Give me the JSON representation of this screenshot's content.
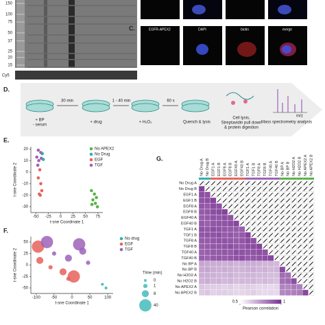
{
  "blot": {
    "markers": [
      150,
      100,
      75,
      50,
      37,
      25,
      20,
      15
    ],
    "loading_label": "Cy5"
  },
  "microscopy": {
    "panel_label": "C.",
    "channels": [
      "EGFR-APEX2",
      "DAPI",
      "biotin",
      "merge"
    ]
  },
  "workflow": {
    "panel_label": "D.",
    "step1": [
      "+ BP",
      "- serum"
    ],
    "time1": "30 min",
    "step2": "+ drug",
    "time2": "1 - 40 min",
    "step3": "+ H₂O₂",
    "time3": "60 s",
    "step4": "Quench & lysis",
    "step5": [
      "Cell lysis,",
      "Streptavidin pull down",
      "& protein digestion"
    ],
    "step6": "Mass spectrometry analysis",
    "spectrum_axis": "m/z"
  },
  "chart_data": [
    {
      "type": "scatter",
      "panel_label": "E.",
      "x_label": "t-sne Coordinate 1",
      "y_label": "t-sne Coordinate 2",
      "xlim": [
        -60,
        85
      ],
      "xticks": [
        -50,
        -25,
        0,
        25,
        50,
        75
      ],
      "ylim": [
        -35,
        22
      ],
      "yticks": [
        -30,
        -20,
        -10,
        0,
        10,
        20
      ],
      "legend": "upper right",
      "series": [
        {
          "name": "No APEX2",
          "color": "#5bb34a",
          "x": [
            62,
            68,
            72,
            65,
            70,
            74,
            63
          ],
          "values": [
            -16,
            -19,
            -22,
            -24,
            -27,
            -30,
            -28
          ]
        },
        {
          "name": "No Drug",
          "color": "#2ab1b5",
          "x": [
            -37,
            -35
          ],
          "values": [
            16,
            11
          ]
        },
        {
          "name": "EGF",
          "color": "#e8625a",
          "x": [
            -42,
            -45,
            -40,
            -38,
            -43,
            -41
          ],
          "values": [
            2,
            -5,
            -10,
            -16,
            -19,
            -20
          ]
        },
        {
          "name": "TGF",
          "color": "#9d62b8",
          "x": [
            -45,
            -40,
            -48,
            -44,
            -39,
            -46
          ],
          "values": [
            19,
            17,
            13,
            10,
            12,
            6
          ]
        }
      ]
    },
    {
      "type": "scatter",
      "panel_label": "F.",
      "x_label": "t-sne Coordinate 1",
      "y_label": "t-sne Coordinate 2",
      "xlim": [
        -115,
        115
      ],
      "xticks": [
        -100,
        -50,
        0,
        50,
        100
      ],
      "ylim": [
        -62,
        62
      ],
      "yticks": [
        -50,
        -25,
        0,
        25,
        50
      ],
      "legend": "upper right",
      "size_legend": {
        "title": "Time (min)",
        "values": [
          0,
          1,
          8,
          40
        ]
      },
      "series": [
        {
          "name": "No drug",
          "color": "#2ab1b5",
          "x": [
            95,
            85
          ],
          "values": [
            -50,
            -42
          ],
          "sizes": [
            0,
            0
          ]
        },
        {
          "name": "EGF",
          "color": "#e8625a",
          "x": [
            -95,
            -90,
            -60,
            -25,
            -10,
            5
          ],
          "values": [
            40,
            10,
            -5,
            -15,
            -30,
            -25
          ],
          "sizes": [
            40,
            8,
            1,
            8,
            1,
            40
          ]
        },
        {
          "name": "TGF",
          "color": "#9d62b8",
          "x": [
            -70,
            -50,
            -10,
            20,
            30,
            45
          ],
          "values": [
            50,
            25,
            15,
            45,
            30,
            5
          ],
          "sizes": [
            40,
            1,
            8,
            40,
            8,
            1
          ]
        }
      ]
    },
    {
      "type": "heatmap",
      "panel_label": "G.",
      "categories": [
        "No Drug A",
        "No Drug B",
        "EGF1 A",
        "EGF1 B",
        "EGF8 A",
        "EGF8 B",
        "EGF40 A",
        "EGF40 B",
        "TGF1 A",
        "TGF1 B",
        "TGF8 A",
        "TGF8 B",
        "TGF40 A",
        "TGF40 B",
        "No BP A",
        "No BP B",
        "No H2O2 A",
        "No H2O2 B",
        "No APEX2 A",
        "No APEX2 B"
      ],
      "values": [
        [],
        [
          0.96
        ],
        [
          0.93,
          0.92
        ],
        [
          0.92,
          0.93,
          0.96
        ],
        [
          0.91,
          0.9,
          0.94,
          0.93
        ],
        [
          0.9,
          0.91,
          0.93,
          0.94,
          0.96
        ],
        [
          0.89,
          0.9,
          0.92,
          0.91,
          0.93,
          0.92
        ],
        [
          0.9,
          0.89,
          0.91,
          0.92,
          0.92,
          0.93,
          0.95
        ],
        [
          0.92,
          0.91,
          0.93,
          0.92,
          0.91,
          0.9,
          0.9,
          0.89
        ],
        [
          0.91,
          0.92,
          0.92,
          0.93,
          0.9,
          0.91,
          0.89,
          0.9,
          0.96
        ],
        [
          0.9,
          0.9,
          0.91,
          0.92,
          0.92,
          0.91,
          0.9,
          0.91,
          0.94,
          0.93
        ],
        [
          0.89,
          0.9,
          0.91,
          0.91,
          0.92,
          0.93,
          0.91,
          0.9,
          0.93,
          0.94,
          0.96
        ],
        [
          0.88,
          0.89,
          0.9,
          0.9,
          0.91,
          0.9,
          0.93,
          0.92,
          0.91,
          0.92,
          0.93,
          0.92
        ],
        [
          0.89,
          0.88,
          0.9,
          0.91,
          0.9,
          0.91,
          0.92,
          0.93,
          0.9,
          0.91,
          0.92,
          0.93,
          0.95
        ],
        [
          0.72,
          0.71,
          0.7,
          0.7,
          0.69,
          0.7,
          0.68,
          0.69,
          0.7,
          0.7,
          0.69,
          0.68,
          0.68,
          0.67
        ],
        [
          0.71,
          0.72,
          0.7,
          0.69,
          0.7,
          0.69,
          0.68,
          0.68,
          0.69,
          0.7,
          0.68,
          0.69,
          0.67,
          0.68,
          0.94
        ],
        [
          0.7,
          0.7,
          0.69,
          0.68,
          0.68,
          0.69,
          0.67,
          0.67,
          0.68,
          0.68,
          0.67,
          0.67,
          0.66,
          0.66,
          0.86,
          0.85
        ],
        [
          0.69,
          0.7,
          0.68,
          0.69,
          0.67,
          0.68,
          0.66,
          0.67,
          0.67,
          0.68,
          0.66,
          0.67,
          0.66,
          0.65,
          0.85,
          0.86,
          0.93
        ],
        [
          0.64,
          0.63,
          0.62,
          0.62,
          0.61,
          0.62,
          0.6,
          0.61,
          0.62,
          0.61,
          0.6,
          0.6,
          0.59,
          0.6,
          0.8,
          0.79,
          0.82,
          0.81
        ],
        [
          0.63,
          0.64,
          0.61,
          0.62,
          0.62,
          0.61,
          0.6,
          0.6,
          0.61,
          0.62,
          0.6,
          0.59,
          0.6,
          0.59,
          0.79,
          0.8,
          0.81,
          0.82,
          0.95
        ]
      ],
      "colorbar": {
        "lim": [
          0.5,
          1
        ],
        "ticks": [
          0.5,
          1
        ],
        "label": "Pearson correlation",
        "colors": [
          "#ffffff",
          "#7b3294"
        ]
      }
    }
  ]
}
